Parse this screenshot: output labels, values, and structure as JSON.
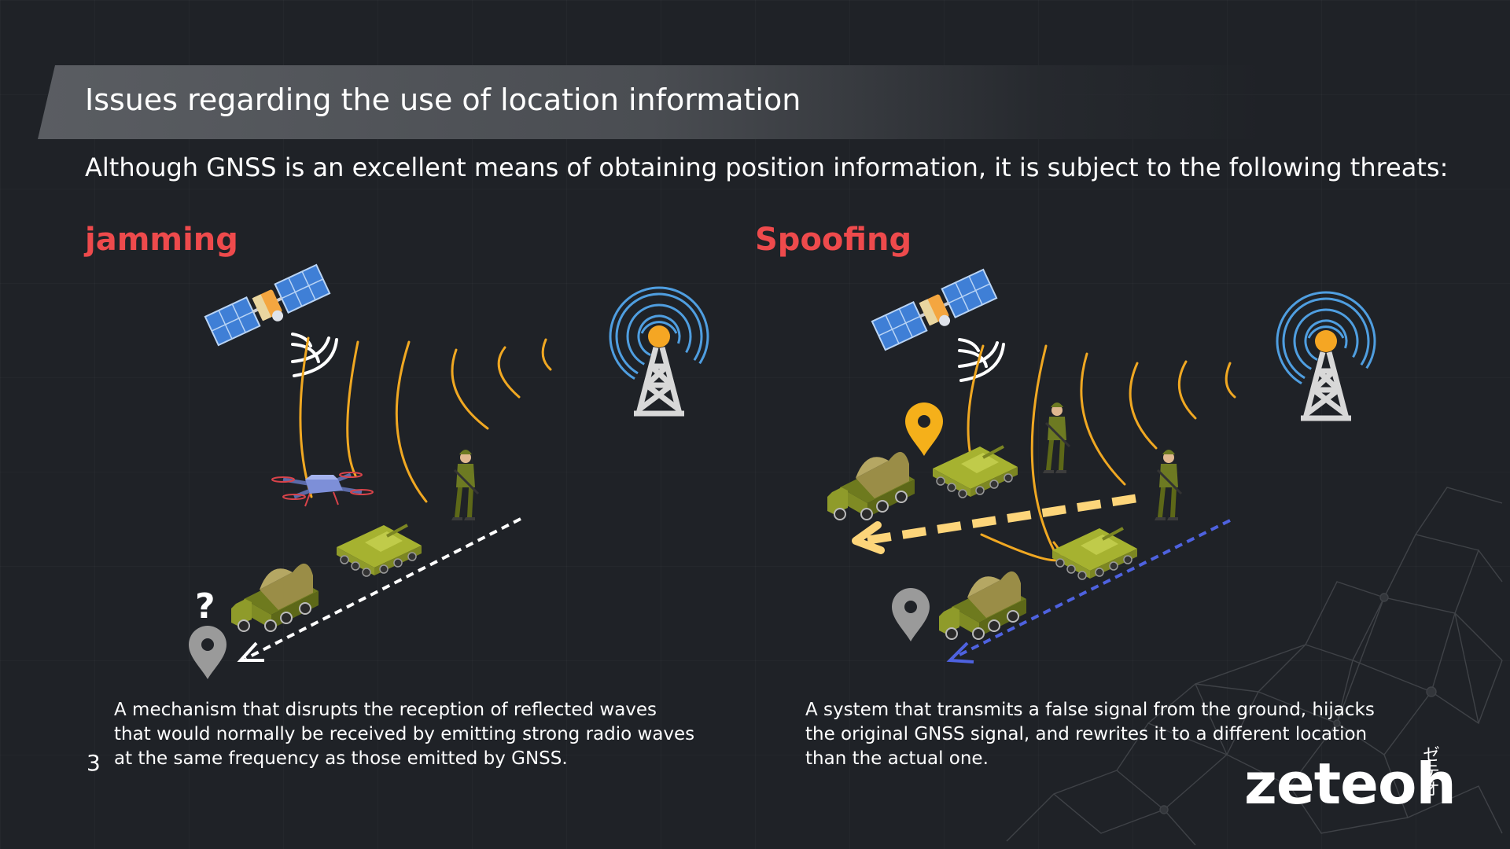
{
  "slide": {
    "title": "Issues regarding the use of location information",
    "subtitle": "Although GNSS is an excellent means of obtaining position information, it is subject to the following threats:",
    "page_number": "3"
  },
  "jamming": {
    "heading": "jamming",
    "question_mark": "?",
    "description": [
      "A mechanism that disrupts the reception of reflected waves",
      "that would normally be received by emitting strong radio waves",
      "at the same frequency as those emitted by GNSS."
    ]
  },
  "spoofing": {
    "heading": "Spoofing",
    "description": [
      "A system that transmits a false signal from the ground, hijacks",
      "the original GNSS signal, and rewrites it to a different location",
      "than the actual one."
    ]
  },
  "logo": {
    "text": "zeteoh",
    "kana": "ゼテオ"
  },
  "colors": {
    "background": "#1f2227",
    "heading_red": "#ee4a4c",
    "wave_orange": "#f0a822",
    "fake_path_yellow": "#fdd57a",
    "true_path_blue": "#4e62e0",
    "pin_gray": "#9a9a9a",
    "pin_gold": "#f5b01a",
    "vehicle_green": "#8f9b2a"
  },
  "icons": [
    "satellite-icon",
    "radio-tower-icon",
    "drone-icon",
    "tank-icon",
    "truck-icon",
    "soldier-icon",
    "location-pin-icon",
    "arrow-icon"
  ]
}
